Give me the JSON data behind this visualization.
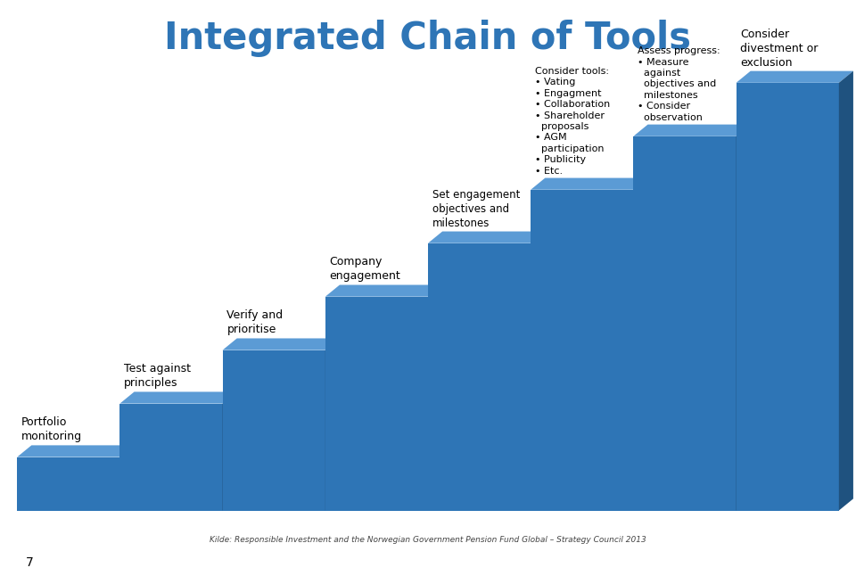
{
  "title": "Integrated Chain of Tools",
  "title_color": "#2E75B6",
  "title_fontsize": 30,
  "bg_color": "#D9D9D9",
  "white_bg": "#FFFFFF",
  "step_color_front": "#2E75B6",
  "step_color_top": "#5B9BD5",
  "step_color_dark": "#1F527F",
  "text_color": "#000000",
  "footer_text": "Kilde: Responsible Investment and the Norwegian Government Pension Fund Global – Strategy Council 2013",
  "page_number": "7",
  "steps": [
    {
      "label": "Portfolio\nmonitoring",
      "level": 0
    },
    {
      "label": "Test against\nprinciples",
      "level": 1
    },
    {
      "label": "Verify and\nprioritise",
      "level": 2
    },
    {
      "label": "Company\nengagement",
      "level": 3
    },
    {
      "label": "Set engagement\nobjectives and\nmilestones",
      "level": 4
    },
    {
      "label": "Consider tools:\n• Vating\n• Engagment\n• Collaboration\n• Shareholder\n  proposals\n• AGM\n  participation\n• Publicity\n• Etc.",
      "level": 5
    },
    {
      "label": "Assess progress:\n• Measure\n  against\n  objectives and\n  milestones\n• Consider\n  observation",
      "level": 6
    },
    {
      "label": "Consider\ndivestment or\nexclusion",
      "level": 7
    }
  ]
}
